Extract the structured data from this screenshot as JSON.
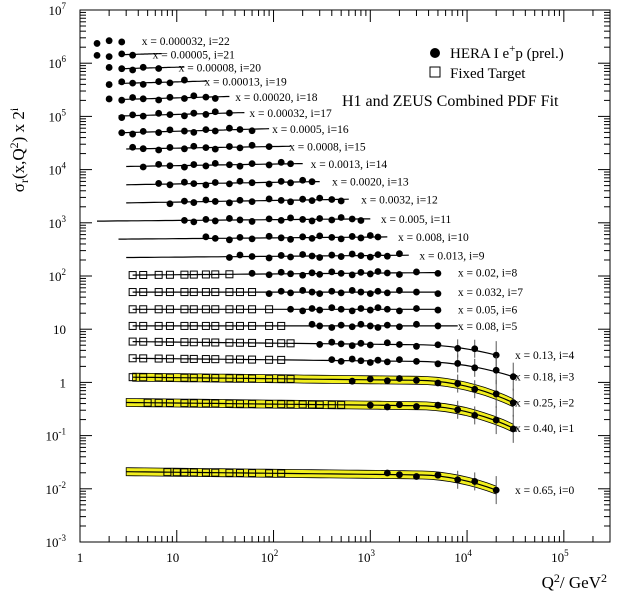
{
  "chart_data": {
    "type": "scatter",
    "title": "H1 and ZEUS Combined PDF Fit",
    "xlabel": "Q²/ GeV²",
    "ylabel": "σ_r(x,Q²) x 2^i",
    "xscale": "log",
    "yscale": "log",
    "xlim": [
      1,
      300000
    ],
    "ylim": [
      0.001,
      10000000
    ],
    "x_ticks": [
      "1",
      "10",
      "10²",
      "10³",
      "10⁴",
      "10⁵"
    ],
    "y_ticks": [
      "10⁻³",
      "10⁻²",
      "10⁻¹",
      "1",
      "10",
      "10²",
      "10³",
      "10⁴",
      "10⁵",
      "10⁶",
      "10⁷"
    ],
    "grid": false,
    "legend_position": "top-right",
    "legend": [
      {
        "name": "HERA I e⁺p (prel.)",
        "marker": "filled-circle"
      },
      {
        "name": "Fixed Target",
        "marker": "open-square"
      }
    ],
    "band_color": "#f2ef1e",
    "series": [
      {
        "name": "x = 0.000032, i=22",
        "i": 22,
        "sigma": 0.7,
        "q2": [
          1.5,
          2.0,
          2.7
        ],
        "fixed_q2": [],
        "fit_q2": [],
        "band": false
      },
      {
        "name": "x = 0.00005, i=21",
        "i": 21,
        "sigma": 0.78,
        "q2": [
          1.5,
          2.0,
          2.7,
          3.5
        ],
        "fixed_q2": [],
        "fit_q2": [
          2.5,
          7
        ],
        "band": false
      },
      {
        "name": "x = 0.00008, i=20",
        "i": 20,
        "sigma": 0.85,
        "q2": [
          2.0,
          2.7,
          3.5,
          4.5,
          6.5
        ],
        "fixed_q2": [],
        "fit_q2": [
          2.5,
          12
        ],
        "band": false
      },
      {
        "name": "x = 0.00013, i=19",
        "i": 19,
        "sigma": 0.9,
        "q2": [
          2.0,
          2.7,
          3.5,
          4.5,
          6.5,
          8.5,
          12
        ],
        "fixed_q2": [],
        "fit_q2": [
          2.5,
          20
        ],
        "band": false
      },
      {
        "name": "x = 0.00020, i=18",
        "i": 18,
        "sigma": 0.9,
        "q2": [
          2.0,
          2.7,
          3.5,
          4.5,
          6.5,
          8.5,
          12,
          15,
          20,
          25
        ],
        "fixed_q2": [],
        "fit_q2": [
          2.5,
          35
        ],
        "band": false
      },
      {
        "name": "x = 0.00032, i=17",
        "i": 17,
        "sigma": 0.88,
        "q2": [
          2.7,
          3.5,
          4.5,
          6.5,
          8.5,
          12,
          15,
          20,
          25,
          35
        ],
        "fixed_q2": [],
        "fit_q2": [
          2.5,
          50
        ],
        "band": false
      },
      {
        "name": "x = 0.0005, i=16",
        "i": 16,
        "sigma": 0.85,
        "q2": [
          2.7,
          3.5,
          4.5,
          6.5,
          8.5,
          12,
          15,
          20,
          25,
          35,
          45,
          60
        ],
        "fixed_q2": [],
        "fit_q2": [
          2.5,
          90
        ],
        "band": false
      },
      {
        "name": "x = 0.0008, i=15",
        "i": 15,
        "sigma": 0.8,
        "q2": [
          3.5,
          4.5,
          6.5,
          8.5,
          12,
          15,
          20,
          25,
          35,
          45,
          60,
          90
        ],
        "fixed_q2": [],
        "fit_q2": [
          3.0,
          150
        ],
        "band": false
      },
      {
        "name": "x = 0.0013, i=14",
        "i": 14,
        "sigma": 0.75,
        "q2": [
          4.5,
          6.5,
          8.5,
          12,
          15,
          20,
          25,
          35,
          45,
          60,
          90,
          120,
          150
        ],
        "fixed_q2": [],
        "fit_q2": [
          3.0,
          200
        ],
        "band": false
      },
      {
        "name": "x = 0.0020, i=13",
        "i": 13,
        "sigma": 0.68,
        "q2": [
          6.5,
          8.5,
          12,
          15,
          20,
          25,
          35,
          45,
          60,
          90,
          120,
          150,
          200,
          250
        ],
        "fixed_q2": [],
        "fit_q2": [
          3.0,
          300
        ],
        "band": false
      },
      {
        "name": "x = 0.0032, i=12",
        "i": 12,
        "sigma": 0.62,
        "q2": [
          8.5,
          12,
          15,
          20,
          25,
          35,
          45,
          60,
          90,
          120,
          150,
          200,
          250,
          300,
          400,
          500
        ],
        "fixed_q2": [],
        "fit_q2": [
          3.0,
          600
        ],
        "band": false
      },
      {
        "name": "x = 0.005, i=11",
        "i": 11,
        "sigma": 0.55,
        "q2": [
          12,
          15,
          20,
          25,
          35,
          45,
          60,
          90,
          120,
          150,
          200,
          250,
          300,
          400,
          500,
          650,
          800
        ],
        "fixed_q2": [],
        "fit_q2": [
          1.5,
          1000
        ],
        "band": false
      },
      {
        "name": "x = 0.008, i=10",
        "i": 10,
        "sigma": 0.5,
        "q2": [
          20,
          25,
          35,
          45,
          60,
          90,
          120,
          150,
          200,
          250,
          300,
          400,
          500,
          650,
          800,
          1000,
          1200
        ],
        "fixed_q2": [],
        "fit_q2": [
          2.5,
          1500
        ],
        "band": false
      },
      {
        "name": "x = 0.013, i=9",
        "i": 9,
        "sigma": 0.45,
        "q2": [
          35,
          45,
          60,
          90,
          120,
          150,
          200,
          250,
          300,
          400,
          500,
          650,
          800,
          1000,
          1200,
          1500,
          2000
        ],
        "fixed_q2": [],
        "fit_q2": [
          3.0,
          2500
        ],
        "band": false
      },
      {
        "name": "x = 0.02, i=8",
        "i": 8,
        "sigma": 0.42,
        "q2": [
          60,
          90,
          120,
          150,
          200,
          250,
          300,
          400,
          500,
          650,
          800,
          1000,
          1200,
          1500,
          2000,
          3000,
          5000
        ],
        "fixed_q2": [
          3.5,
          4.5,
          6.5,
          8.5,
          12,
          15,
          20,
          25,
          35
        ],
        "fit_q2": [
          3.5,
          5000
        ],
        "band": false
      },
      {
        "name": "x = 0.032, i=7",
        "i": 7,
        "sigma": 0.39,
        "q2": [
          90,
          120,
          150,
          200,
          250,
          300,
          400,
          500,
          650,
          800,
          1000,
          1200,
          1500,
          2000,
          3000,
          5000
        ],
        "fixed_q2": [
          3.5,
          4.5,
          6.5,
          8.5,
          12,
          15,
          20,
          25,
          35,
          45,
          60
        ],
        "fit_q2": [
          3.5,
          5000
        ],
        "band": false
      },
      {
        "name": "x = 0.05, i=6",
        "i": 6,
        "sigma": 0.37,
        "q2": [
          150,
          200,
          250,
          300,
          400,
          500,
          650,
          800,
          1000,
          1200,
          1500,
          2000,
          3000,
          5000
        ],
        "fixed_q2": [
          3.5,
          4.5,
          6.5,
          8.5,
          12,
          15,
          20,
          25,
          35,
          45,
          60,
          90
        ],
        "fit_q2": [
          3.5,
          5000
        ],
        "band": false
      },
      {
        "name": "x = 0.08, i=5",
        "i": 5,
        "sigma": 0.36,
        "q2": [
          250,
          300,
          400,
          500,
          650,
          800,
          1000,
          1200,
          1500,
          2000,
          3000,
          5000
        ],
        "fixed_q2": [
          3.5,
          4.5,
          6.5,
          8.5,
          12,
          15,
          20,
          25,
          35,
          45,
          60,
          90,
          120
        ],
        "fit_q2": [
          3.5,
          8000
        ],
        "band": false
      },
      {
        "name": "x = 0.13, i=4",
        "i": 4,
        "sigma": 0.35,
        "q2": [
          300,
          400,
          500,
          650,
          800,
          1000,
          1500,
          2000,
          3000,
          5000,
          8000,
          12000,
          20000
        ],
        "fixed_q2": [
          3.5,
          4.5,
          6.5,
          8.5,
          12,
          15,
          20,
          25,
          35,
          45,
          60,
          90,
          120,
          150
        ],
        "fit_q2": [
          3.5,
          20000
        ],
        "band": false
      },
      {
        "name": "x = 0.18, i=3",
        "i": 3,
        "sigma": 0.34,
        "q2": [
          400,
          500,
          650,
          800,
          1000,
          1200,
          1500,
          2000,
          3000,
          5000,
          8000,
          12000,
          20000,
          30000
        ],
        "fixed_q2": [
          3.5,
          4.5,
          6.5,
          8.5,
          12,
          15,
          20,
          25,
          35,
          45,
          60,
          90,
          120
        ],
        "fit_q2": [
          3.5,
          30000
        ],
        "band": false
      },
      {
        "name": "x = 0.25, i=2",
        "i": 2,
        "sigma": 0.3,
        "q2": [
          650,
          1000,
          1500,
          2000,
          3000,
          5000,
          8000,
          12000,
          20000,
          30000
        ],
        "fixed_q2": [
          3.5,
          4.5,
          6.5,
          8.5,
          12,
          15,
          20,
          25,
          35,
          45,
          60,
          90,
          120,
          150
        ],
        "fit_q2": [
          3.5,
          30000
        ],
        "band": true
      },
      {
        "name": "x = 0.40, i=1",
        "i": 1,
        "sigma": 0.2,
        "q2": [
          1000,
          1500,
          2000,
          3000,
          5000,
          8000,
          12000,
          20000,
          30000
        ],
        "fixed_q2": [
          5,
          6.5,
          8.5,
          12,
          15,
          20,
          25,
          35,
          45,
          60,
          90,
          120,
          150,
          200,
          250,
          300,
          400,
          500
        ],
        "fit_q2": [
          3.0,
          30000
        ],
        "band": true
      },
      {
        "name": "x = 0.65, i=0",
        "i": 0,
        "sigma": 0.02,
        "q2": [
          1500,
          2000,
          3000,
          5000,
          8000,
          12000,
          20000
        ],
        "fixed_q2": [
          8,
          10,
          12,
          15,
          20,
          25,
          35,
          45,
          60,
          90,
          120
        ],
        "fit_q2": [
          3.0,
          20000
        ],
        "band": true
      }
    ]
  }
}
